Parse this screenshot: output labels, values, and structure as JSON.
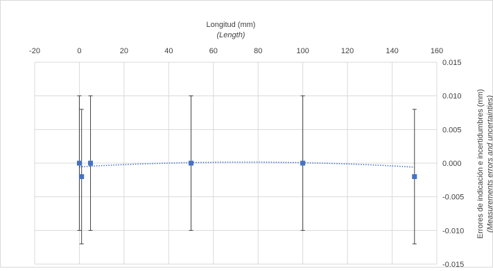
{
  "chart_data": {
    "type": "scatter",
    "xlabel": "Longitud (mm)",
    "xlabel_secondary": "(Length)",
    "ylabel": "Errores de indicación e incertidumbres (mm)",
    "ylabel_secondary": "(Measurements errors and uncertainties)",
    "xlim": [
      -20,
      160
    ],
    "ylim": [
      -0.015,
      0.015
    ],
    "x_ticks": [
      -20,
      0,
      20,
      40,
      60,
      80,
      100,
      120,
      140,
      160
    ],
    "x_tick_labels": [
      "-20",
      "0",
      "20",
      "40",
      "60",
      "80",
      "100",
      "120",
      "140",
      "160"
    ],
    "y_ticks": [
      0.015,
      0.01,
      0.005,
      0.0,
      -0.005,
      -0.01,
      -0.015
    ],
    "y_tick_labels": [
      "0.015",
      "0.010",
      "0.005",
      "0.000",
      "-0.005",
      "-0.010",
      "-0.015"
    ],
    "x_axis_position": "top",
    "y_axis_position": "right",
    "grid": true,
    "series": [
      {
        "x": [
          0,
          1,
          5,
          50,
          100,
          150
        ],
        "y": [
          0.0,
          -0.002,
          0.0,
          0.0,
          0.0,
          -0.002
        ],
        "error": [
          0.01,
          0.01,
          0.01,
          0.01,
          0.01,
          0.01
        ],
        "marker_color": "#4472c4",
        "errorbar_color": "#404040"
      }
    ],
    "trendline": {
      "type": "polynomial",
      "style": "dotted",
      "color": "#4472c4",
      "x_range": [
        0,
        150
      ],
      "coefficients": [
        -0.00055,
        1.92e-05,
        -1.3e-07
      ]
    },
    "grid_color": "#d9d9d9"
  }
}
